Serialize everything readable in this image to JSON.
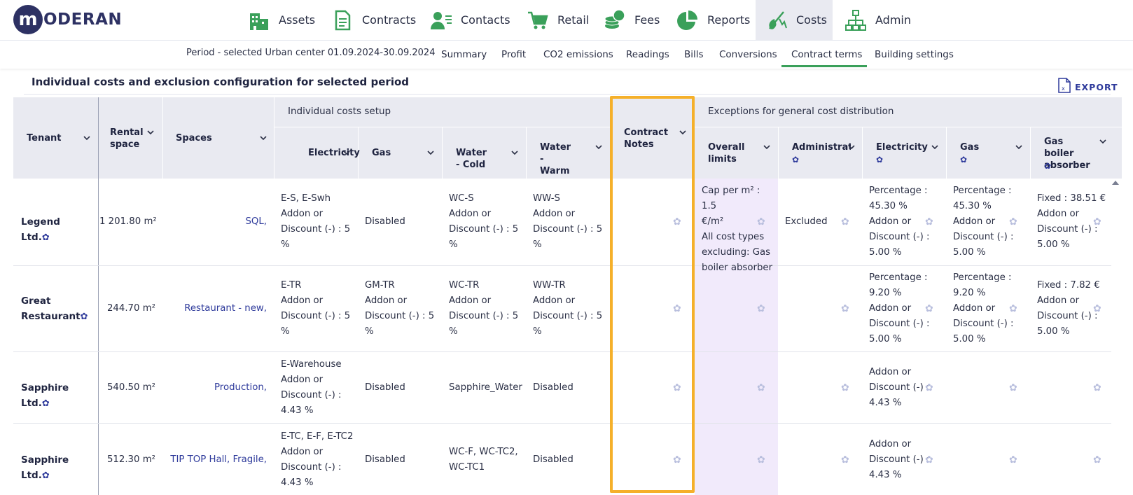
{
  "app": {
    "logo_letter": "m",
    "logo_text": "ODERAN"
  },
  "nav": {
    "items": [
      {
        "label": "Assets",
        "icon": "building-icon"
      },
      {
        "label": "Contracts",
        "icon": "document-icon"
      },
      {
        "label": "Contacts",
        "icon": "contacts-icon"
      },
      {
        "label": "Retail",
        "icon": "cart-icon"
      },
      {
        "label": "Fees",
        "icon": "coins-icon"
      },
      {
        "label": "Reports",
        "icon": "pie-chart-icon"
      },
      {
        "label": "Costs",
        "icon": "costs-icon",
        "active": true
      },
      {
        "label": "Admin",
        "icon": "org-chart-icon"
      }
    ],
    "icon_color": "#3aa05a"
  },
  "subnav": {
    "period": "Period - selected Urban center 01.09.2024-30.09.2024",
    "tabs": [
      "Summary",
      "Profit",
      "CO2 emissions",
      "Readings",
      "Bills",
      "Conversions",
      "Contract terms",
      "Building settings"
    ],
    "active_tab": "Contract terms"
  },
  "section": {
    "title": "Individual costs and exclusion configuration for selected period",
    "export_label": "EXPORT"
  },
  "table": {
    "group_individual": "Individual costs setup",
    "group_exceptions": "Exceptions for general cost distribution",
    "headers": {
      "tenant": "Tenant",
      "rental_space_1": "Rental",
      "rental_space_2": "space",
      "spaces": "Spaces",
      "electricity": "Electricity",
      "gas": "Gas",
      "water_cold": "Water - Cold",
      "water_warm_1": "Water -",
      "water_warm_2": "Warm",
      "contract_notes_1": "Contract",
      "contract_notes_2": "Notes",
      "overall_limits_1": "Overall",
      "overall_limits_2": "limits",
      "administration": "Administratic",
      "ex_electricity": "Electricity",
      "ex_gas": "Gas",
      "gas_boiler_1": "Gas boiler",
      "gas_boiler_2": "absorber"
    },
    "rows": [
      {
        "tenant": [
          "Legend Ltd."
        ],
        "rental_space": "1 201.80 m²",
        "spaces": "SQL,",
        "electricity": [
          "E-S, E-Swh",
          "Addon or",
          "Discount (-) : 5",
          "%"
        ],
        "gas": [
          "Disabled"
        ],
        "water_cold": [
          "WC-S",
          "Addon or",
          "Discount (-) : 5",
          "%"
        ],
        "water_warm": [
          "WW-S",
          "Addon or",
          "Discount (-) : 5",
          "%"
        ],
        "overall_limits": [
          "Cap per m² : 1.5",
          "€/m²",
          "All cost types",
          "excluding: Gas",
          "boiler absorber"
        ],
        "administration": [
          "Excluded"
        ],
        "ex_electricity": [
          "Percentage :",
          "45.30 %",
          "Addon or",
          "Discount (-) :",
          "5.00 %"
        ],
        "ex_gas": [
          "Percentage :",
          "45.30 %",
          "Addon or",
          "Discount (-) :",
          "5.00 %"
        ],
        "gas_boiler": [
          "Fixed : 38.51 €",
          "Addon or",
          "Discount (-) :",
          "5.00 %"
        ]
      },
      {
        "tenant": [
          "Great",
          "Restaurant"
        ],
        "rental_space": "244.70 m²",
        "spaces": "Restaurant - new,",
        "electricity": [
          "E-TR",
          "Addon or",
          "Discount (-) : 5",
          "%"
        ],
        "gas": [
          "GM-TR",
          "Addon or",
          "Discount (-) : 5",
          "%"
        ],
        "water_cold": [
          "WC-TR",
          "Addon or",
          "Discount (-) : 5",
          "%"
        ],
        "water_warm": [
          "WW-TR",
          "Addon or",
          "Discount (-) : 5",
          "%"
        ],
        "overall_limits": [],
        "administration": [],
        "ex_electricity": [
          "Percentage :",
          "9.20 %",
          "Addon or",
          "Discount (-) :",
          "5.00 %"
        ],
        "ex_gas": [
          "Percentage :",
          "9.20 %",
          "Addon or",
          "Discount (-) :",
          "5.00 %"
        ],
        "gas_boiler": [
          "Fixed : 7.82 €",
          "Addon or",
          "Discount (-) :",
          "5.00 %"
        ]
      },
      {
        "tenant": [
          "Sapphire Ltd."
        ],
        "rental_space": "540.50 m²",
        "spaces": "Production,",
        "electricity": [
          "E-Warehouse",
          "Addon or",
          "Discount (-) :",
          "4.43 %"
        ],
        "gas": [
          "Disabled"
        ],
        "water_cold": [
          "Sapphire_Water"
        ],
        "water_warm": [
          "Disabled"
        ],
        "overall_limits": [],
        "administration": [],
        "ex_electricity": [
          "Addon or",
          "Discount (-) :",
          "4.43 %"
        ],
        "ex_gas": [],
        "gas_boiler": []
      },
      {
        "tenant": [
          "Sapphire Ltd."
        ],
        "rental_space": "512.30 m²",
        "spaces": "TIP TOP Hall, Fragile,",
        "electricity": [
          "E-TC, E-F, E-TC2",
          "Addon or",
          "Discount (-) :",
          "4.43 %"
        ],
        "gas": [
          "Disabled"
        ],
        "water_cold": [
          "WC-F, WC-TC2,",
          "WC-TC1"
        ],
        "water_warm": [
          "Disabled"
        ],
        "overall_limits": [],
        "administration": [],
        "ex_electricity": [
          "Addon or",
          "Discount (-) :",
          "4.43 %"
        ],
        "ex_gas": [],
        "gas_boiler": []
      }
    ]
  },
  "colors": {
    "accent_green": "#3aa05a",
    "header_bg": "#e9eaf1",
    "link_blue": "#2e3a9b",
    "highlight": "#f5b02a",
    "limits_bg": "#f1eafb"
  }
}
